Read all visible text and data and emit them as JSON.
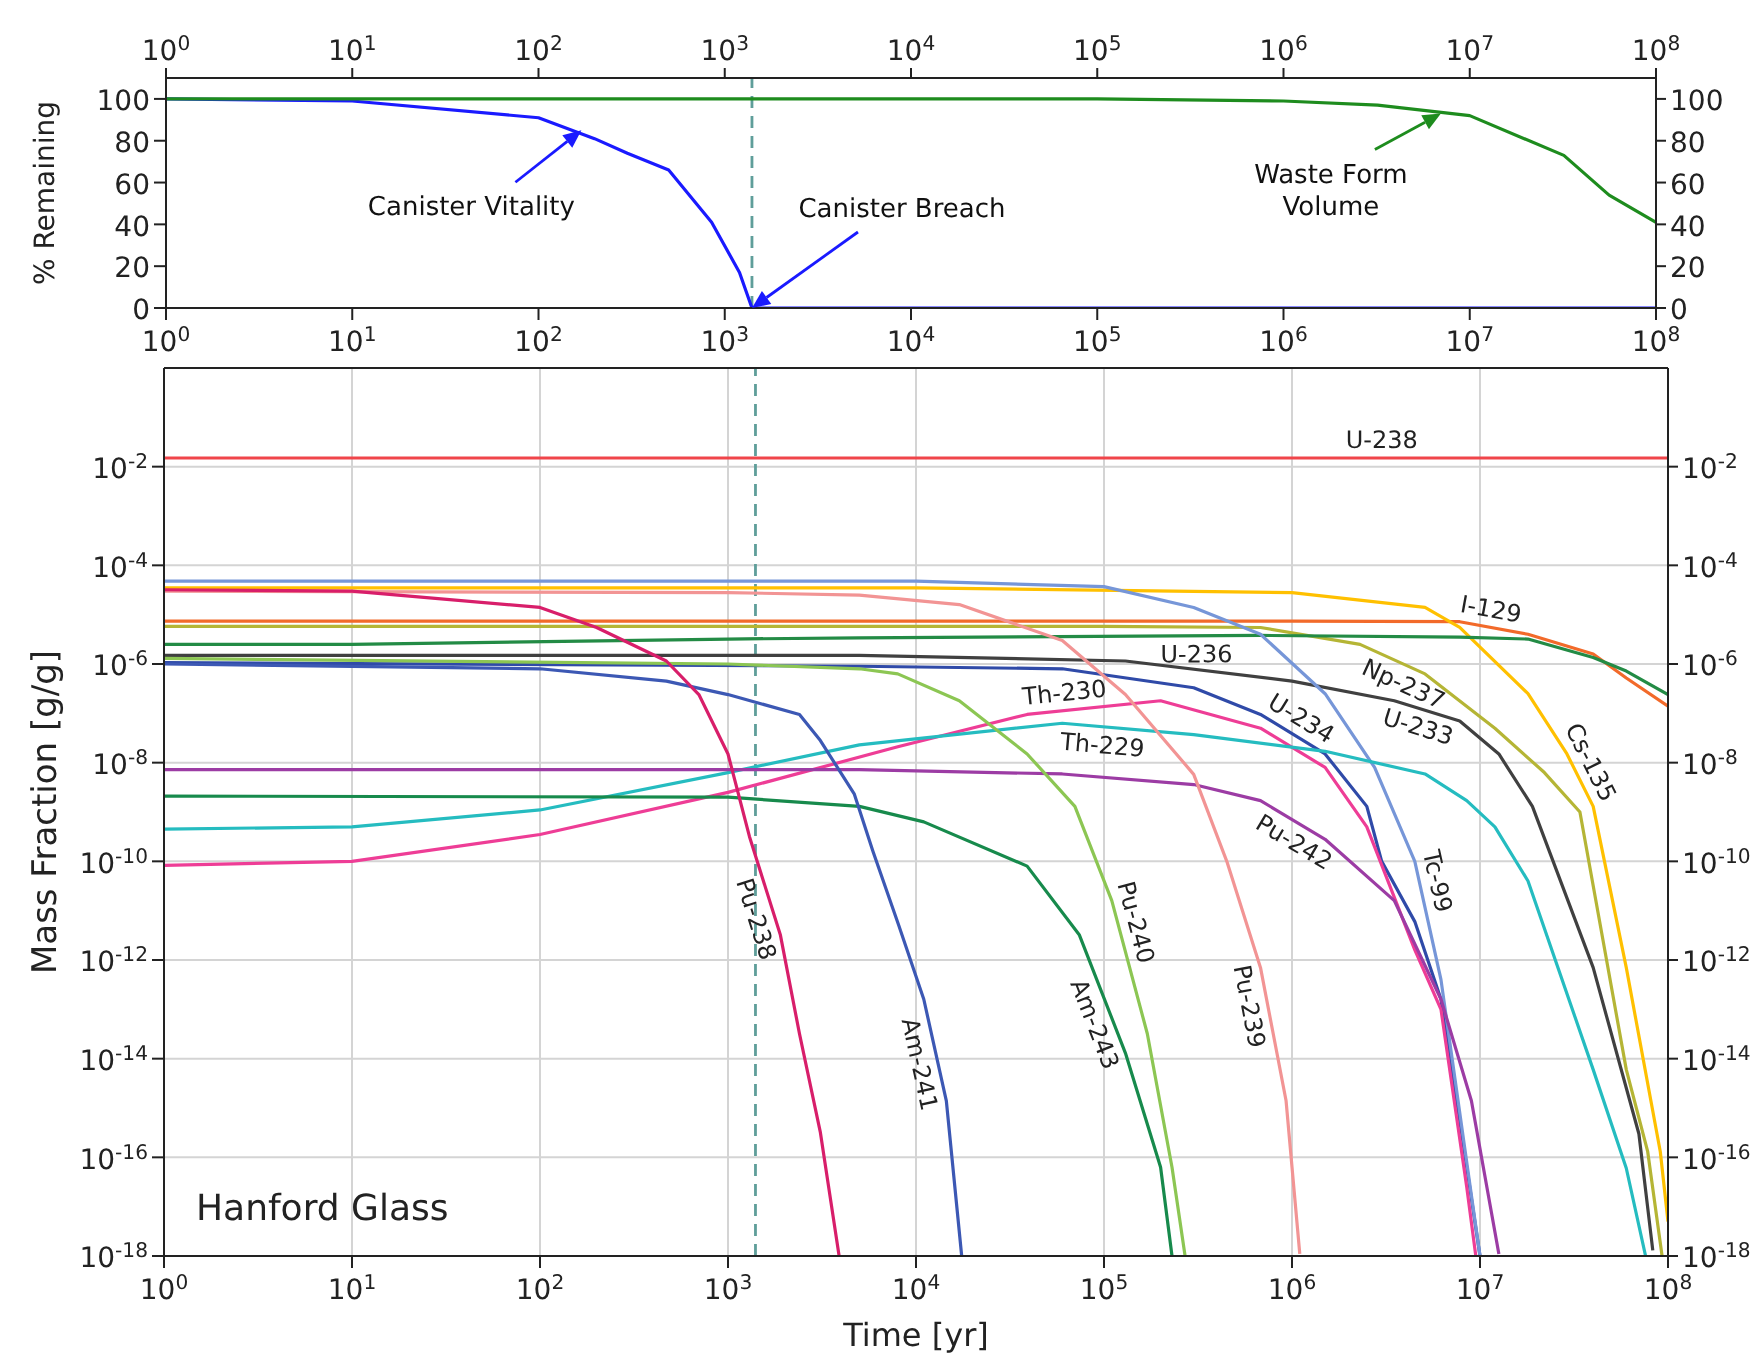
{
  "chart_data": [
    {
      "type": "line",
      "ylabel": "% Remaining",
      "log": "x",
      "xlim": [
        1,
        100000000
      ],
      "xticks": [
        {
          "value": 1,
          "label": "10$^{0}$"
        },
        {
          "value": 10,
          "label": "10$^{1}$"
        },
        {
          "value": 100,
          "label": "10$^{2}$"
        },
        {
          "value": 1000,
          "label": "10$^{3}$"
        },
        {
          "value": 10000,
          "label": "10$^{4}$"
        },
        {
          "value": 100000,
          "label": "10$^{5}$"
        },
        {
          "value": 1000000,
          "label": "10$^{6}$"
        },
        {
          "value": 10000000,
          "label": "10$^{7}$"
        },
        {
          "value": 100000000,
          "label": "10$^{8}$"
        }
      ],
      "ylim": [
        0,
        110
      ],
      "yticks": [
        0,
        20,
        40,
        60,
        80,
        100
      ],
      "y2lim": [
        0,
        110
      ],
      "y2ticks": [
        0,
        20,
        40,
        60,
        80,
        100
      ],
      "series": [
        {
          "color": "#1a1aff",
          "x": [
            1,
            10,
            100,
            200,
            300,
            500,
            850,
            1200,
            1400,
            100000000
          ],
          "values": [
            100,
            99,
            91,
            81,
            74,
            66,
            41,
            17,
            0,
            0
          ]
        },
        {
          "color": "#1e8c1e",
          "x": [
            1,
            100000,
            1000000,
            3200000,
            10000000,
            32000000,
            56000000,
            100000000
          ],
          "values": [
            100,
            100,
            99,
            97,
            92,
            73,
            54,
            41
          ]
        }
      ],
      "ref_lines": [
        {
          "axis": "x",
          "value": 1400,
          "label": "Canister Breach",
          "color": "#5f9e9a",
          "line_style": "dashed"
        }
      ],
      "annotations": [
        {
          "text": "Canister Vitality",
          "x": 170,
          "y": 85
        },
        {
          "text": "Waste Form Volume",
          "x": 7000000,
          "y": 93
        }
      ]
    },
    {
      "type": "line",
      "xlabel": "Time [yr]",
      "ylabel": "Mass Fraction [g/g]",
      "log": "xy",
      "grid": true,
      "xlim": [
        1,
        100000000
      ],
      "xticks": [
        {
          "value": 1,
          "label": "10$^{0}$"
        },
        {
          "value": 10,
          "label": "10$^{1}$"
        },
        {
          "value": 100,
          "label": "10$^{2}$"
        },
        {
          "value": 1000,
          "label": "10$^{3}$"
        },
        {
          "value": 10000,
          "label": "10$^{4}$"
        },
        {
          "value": 100000,
          "label": "10$^{5}$"
        },
        {
          "value": 1000000,
          "label": "10$^{6}$"
        },
        {
          "value": 10000000,
          "label": "10$^{7}$"
        },
        {
          "value": 100000000,
          "label": "10$^{8}$"
        }
      ],
      "ylim": [
        1e-18,
        1
      ],
      "yticks": [
        {
          "value": 1e-18,
          "label": "10$^{-18}$"
        },
        {
          "value": 1e-16,
          "label": "10$^{-16}$"
        },
        {
          "value": 1e-14,
          "label": "10$^{-14}$"
        },
        {
          "value": 1e-12,
          "label": "10$^{-12}$"
        },
        {
          "value": 1e-10,
          "label": "10$^{-10}$"
        },
        {
          "value": 1e-08,
          "label": "10$^{-8}$"
        },
        {
          "value": 1e-06,
          "label": "10$^{-6}$"
        },
        {
          "value": 0.0001,
          "label": "10$^{-4}$"
        },
        {
          "value": 0.01,
          "label": "10$^{-2}$"
        }
      ],
      "series": [
        {
          "color": "#f0454a",
          "x": [
            1,
            100000000
          ],
          "values": [
            0.015,
            0.015
          ]
        },
        {
          "color": "#f26a2a",
          "x": [
            1,
            100000,
            1000000,
            7800000,
            18000000,
            40000000,
            60000000,
            100000000
          ],
          "values": [
            7.4e-06,
            7.4e-06,
            7.4e-06,
            7.2e-06,
            4e-06,
            1.6e-06,
            5.2e-07,
            1.4e-07
          ]
        },
        {
          "color": "#ffc000",
          "x": [
            1,
            10000,
            1000000,
            5100000,
            7800000,
            18000000,
            29000000,
            40000000,
            60000000,
            91000000,
            100000000
          ],
          "values": [
            3.5e-05,
            3.5e-05,
            2.8e-05,
            1.4e-05,
            5.5e-06,
            2.5e-07,
            1.5e-08,
            1.3e-09,
            7e-13,
            1.3e-16,
            5e-18
          ]
        },
        {
          "color": "#b5b535",
          "x": [
            1,
            100000,
            680000,
            2300000,
            5100000,
            12000000,
            22000000,
            34000000,
            60000000,
            78000000,
            93000000
          ],
          "values": [
            5.8e-06,
            5.8e-06,
            5.5e-06,
            2.5e-06,
            6.3e-07,
            5e-08,
            6.3e-09,
            1e-09,
            6e-15,
            1.3e-16,
            1e-18
          ]
        },
        {
          "color": "#238b45",
          "x": [
            1,
            10,
            1000,
            5000,
            680000,
            7800000,
            18000000,
            40000000,
            60000000,
            100000000
          ],
          "values": [
            2.5e-06,
            2.5e-06,
            3.2e-06,
            3.4e-06,
            3.8e-06,
            3.5e-06,
            3.2e-06,
            1.35e-06,
            7.2e-07,
            2.4e-07
          ]
        },
        {
          "color": "#404040",
          "x": [
            1,
            5000,
            130000,
            1000000,
            3500000,
            7800000,
            12600000,
            19000000,
            40000000,
            70000000,
            83000000
          ],
          "values": [
            1.5e-06,
            1.5e-06,
            1.15e-06,
            4.5e-07,
            1.8e-07,
            7e-08,
            1.5e-08,
            1.3e-09,
            7e-13,
            3e-16,
            1.3e-18
          ]
        },
        {
          "color": "#2f4aa8",
          "x": [
            1,
            5000,
            60000,
            300000,
            680000,
            1500000,
            2500000,
            3000000,
            4500000,
            6200000,
            8000000,
            10000000
          ],
          "values": [
            1.07e-06,
            9e-07,
            8e-07,
            3.3e-07,
            9.5e-08,
            1.5e-08,
            1.3e-09,
            1e-10,
            6e-12,
            1.6e-13,
            3e-16,
            1e-18
          ]
        },
        {
          "color": "#7696d8",
          "x": [
            1,
            10000,
            100000,
            300000,
            680000,
            1500000,
            2750000,
            4500000,
            6200000,
            8500000,
            10000000
          ],
          "values": [
            4.8e-05,
            4.8e-05,
            3.7e-05,
            1.4e-05,
            4e-06,
            2.5e-07,
            8e-09,
            1e-10,
            4e-13,
            8e-17,
            1e-18
          ]
        },
        {
          "color": "#ee3d96",
          "x": [
            1,
            10,
            100,
            1000,
            8000,
            39000,
            200000,
            680000,
            1500000,
            2500000,
            4500000,
            6200000,
            8500000,
            9500000
          ],
          "values": [
            8.3e-11,
            1e-10,
            3.5e-10,
            2.5e-09,
            2.1e-08,
            9.5e-08,
            1.8e-07,
            5e-08,
            8e-09,
            5e-10,
            1.6e-12,
            1e-13,
            2.5e-17,
            1e-18
          ]
        },
        {
          "color": "#25bcc0",
          "x": [
            1,
            10,
            100,
            1000,
            5000,
            60000,
            300000,
            1500000,
            5100000,
            8500000,
            12000000,
            18000000,
            40000000,
            60000000,
            76000000
          ],
          "values": [
            4.5e-10,
            5e-10,
            1.1e-09,
            6.3e-09,
            2.3e-08,
            6.3e-08,
            3.7e-08,
            1.7e-08,
            5.9e-09,
            1.7e-09,
            5e-10,
            4e-11,
            6e-15,
            6e-17,
            1e-18
          ]
        },
        {
          "color": "#9c3ca4",
          "x": [
            1,
            5000,
            60000,
            300000,
            680000,
            1500000,
            3500000,
            6200000,
            9000000,
            12600000
          ],
          "values": [
            7.2e-09,
            7.2e-09,
            5.9e-09,
            3.6e-09,
            1.7e-09,
            2.8e-10,
            1.6e-11,
            1.6e-13,
            1.4e-15,
            1.1e-18
          ]
        },
        {
          "color": "#f29494",
          "x": [
            1,
            1000,
            5000,
            17000,
            60000,
            130000,
            300000,
            450000,
            680000,
            930000,
            1100000
          ],
          "values": [
            3e-05,
            2.8e-05,
            2.5e-05,
            1.6e-05,
            3e-06,
            2.4e-07,
            5.8e-09,
            1e-10,
            7e-13,
            1.4e-15,
            1.1e-18
          ]
        },
        {
          "color": "#8cc653",
          "x": [
            1,
            1000,
            5000,
            8000,
            17000,
            39000,
            70000,
            110000,
            170000,
            230000,
            270000
          ],
          "values": [
            1.3e-06,
            1e-06,
            8e-07,
            6.3e-07,
            1.8e-07,
            1.5e-08,
            1.3e-09,
            1.6e-11,
            3.2e-14,
            6.3e-17,
            1e-18
          ]
        },
        {
          "color": "#178a4c",
          "x": [
            1,
            1000,
            5000,
            11000,
            39000,
            74000,
            130000,
            200000,
            230000
          ],
          "values": [
            2.1e-09,
            2e-09,
            1.3e-09,
            6.3e-10,
            8e-11,
            3.2e-12,
            1.3e-14,
            6.3e-17,
            1e-18
          ]
        },
        {
          "color": "#3c58b4",
          "x": [
            1,
            100,
            470,
            1000,
            2400,
            3100,
            4700,
            5900,
            8100,
            11000,
            14500,
            17500
          ],
          "values": [
            1e-06,
            8e-07,
            4.5e-07,
            2.4e-07,
            9.5e-08,
            2.8e-08,
            2.3e-09,
            1.6e-10,
            5e-12,
            1.6e-13,
            1.4e-15,
            1e-18
          ]
        },
        {
          "color": "#d81e6a",
          "x": [
            1,
            10,
            100,
            200,
            470,
            700,
            1000,
            1300,
            1900,
            2400,
            3100,
            3900
          ],
          "values": [
            3.2e-05,
            3e-05,
            1.4e-05,
            5.5e-06,
            1.15e-06,
            2.4e-07,
            1.5e-08,
            3.2e-10,
            3.2e-12,
            3.2e-14,
            3.2e-16,
            1e-18
          ]
        }
      ],
      "ref_lines": [
        {
          "axis": "x",
          "value": 1400,
          "color": "#5f9e9a",
          "line_style": "dashed"
        }
      ],
      "annotations": [
        "Hanford Glass",
        {
          "text": "U-238",
          "x": 3000000,
          "y": 0.015
        },
        {
          "text": "I-129",
          "x": 11000000,
          "y": 5.7e-06
        },
        {
          "text": "U-236",
          "x": 310000,
          "y": 3.7e-06
        },
        {
          "text": "Np-237",
          "x": 4300000,
          "y": 8.5e-07
        },
        {
          "text": "U-233",
          "x": 5000000,
          "y": 1.2e-07
        },
        {
          "text": "U-234",
          "x": 1000000,
          "y": 3.9e-08
        },
        {
          "text": "Th-230",
          "x": 63000,
          "y": 1.15e-07
        },
        {
          "text": "Th-229",
          "x": 100000,
          "y": 5.3e-08
        },
        {
          "text": "Cs-135",
          "x": 32000000,
          "y": 7e-09
        },
        {
          "text": "Tc-99",
          "x": 4800000,
          "y": 3.3e-11
        },
        {
          "text": "Pu-242",
          "x": 1150000,
          "y": 5.1e-10
        },
        {
          "text": "Pu-239",
          "x": 740000,
          "y": 1.35e-13
        },
        {
          "text": "Pu-240",
          "x": 120000,
          "y": 4.7e-12
        },
        {
          "text": "Am-243",
          "x": 110000,
          "y": 6.8e-14
        },
        {
          "text": "Am-241",
          "x": 13000,
          "y": 9.3e-15
        },
        {
          "text": "Pu-238",
          "x": 1750,
          "y": 8.7e-12
        }
      ]
    }
  ]
}
